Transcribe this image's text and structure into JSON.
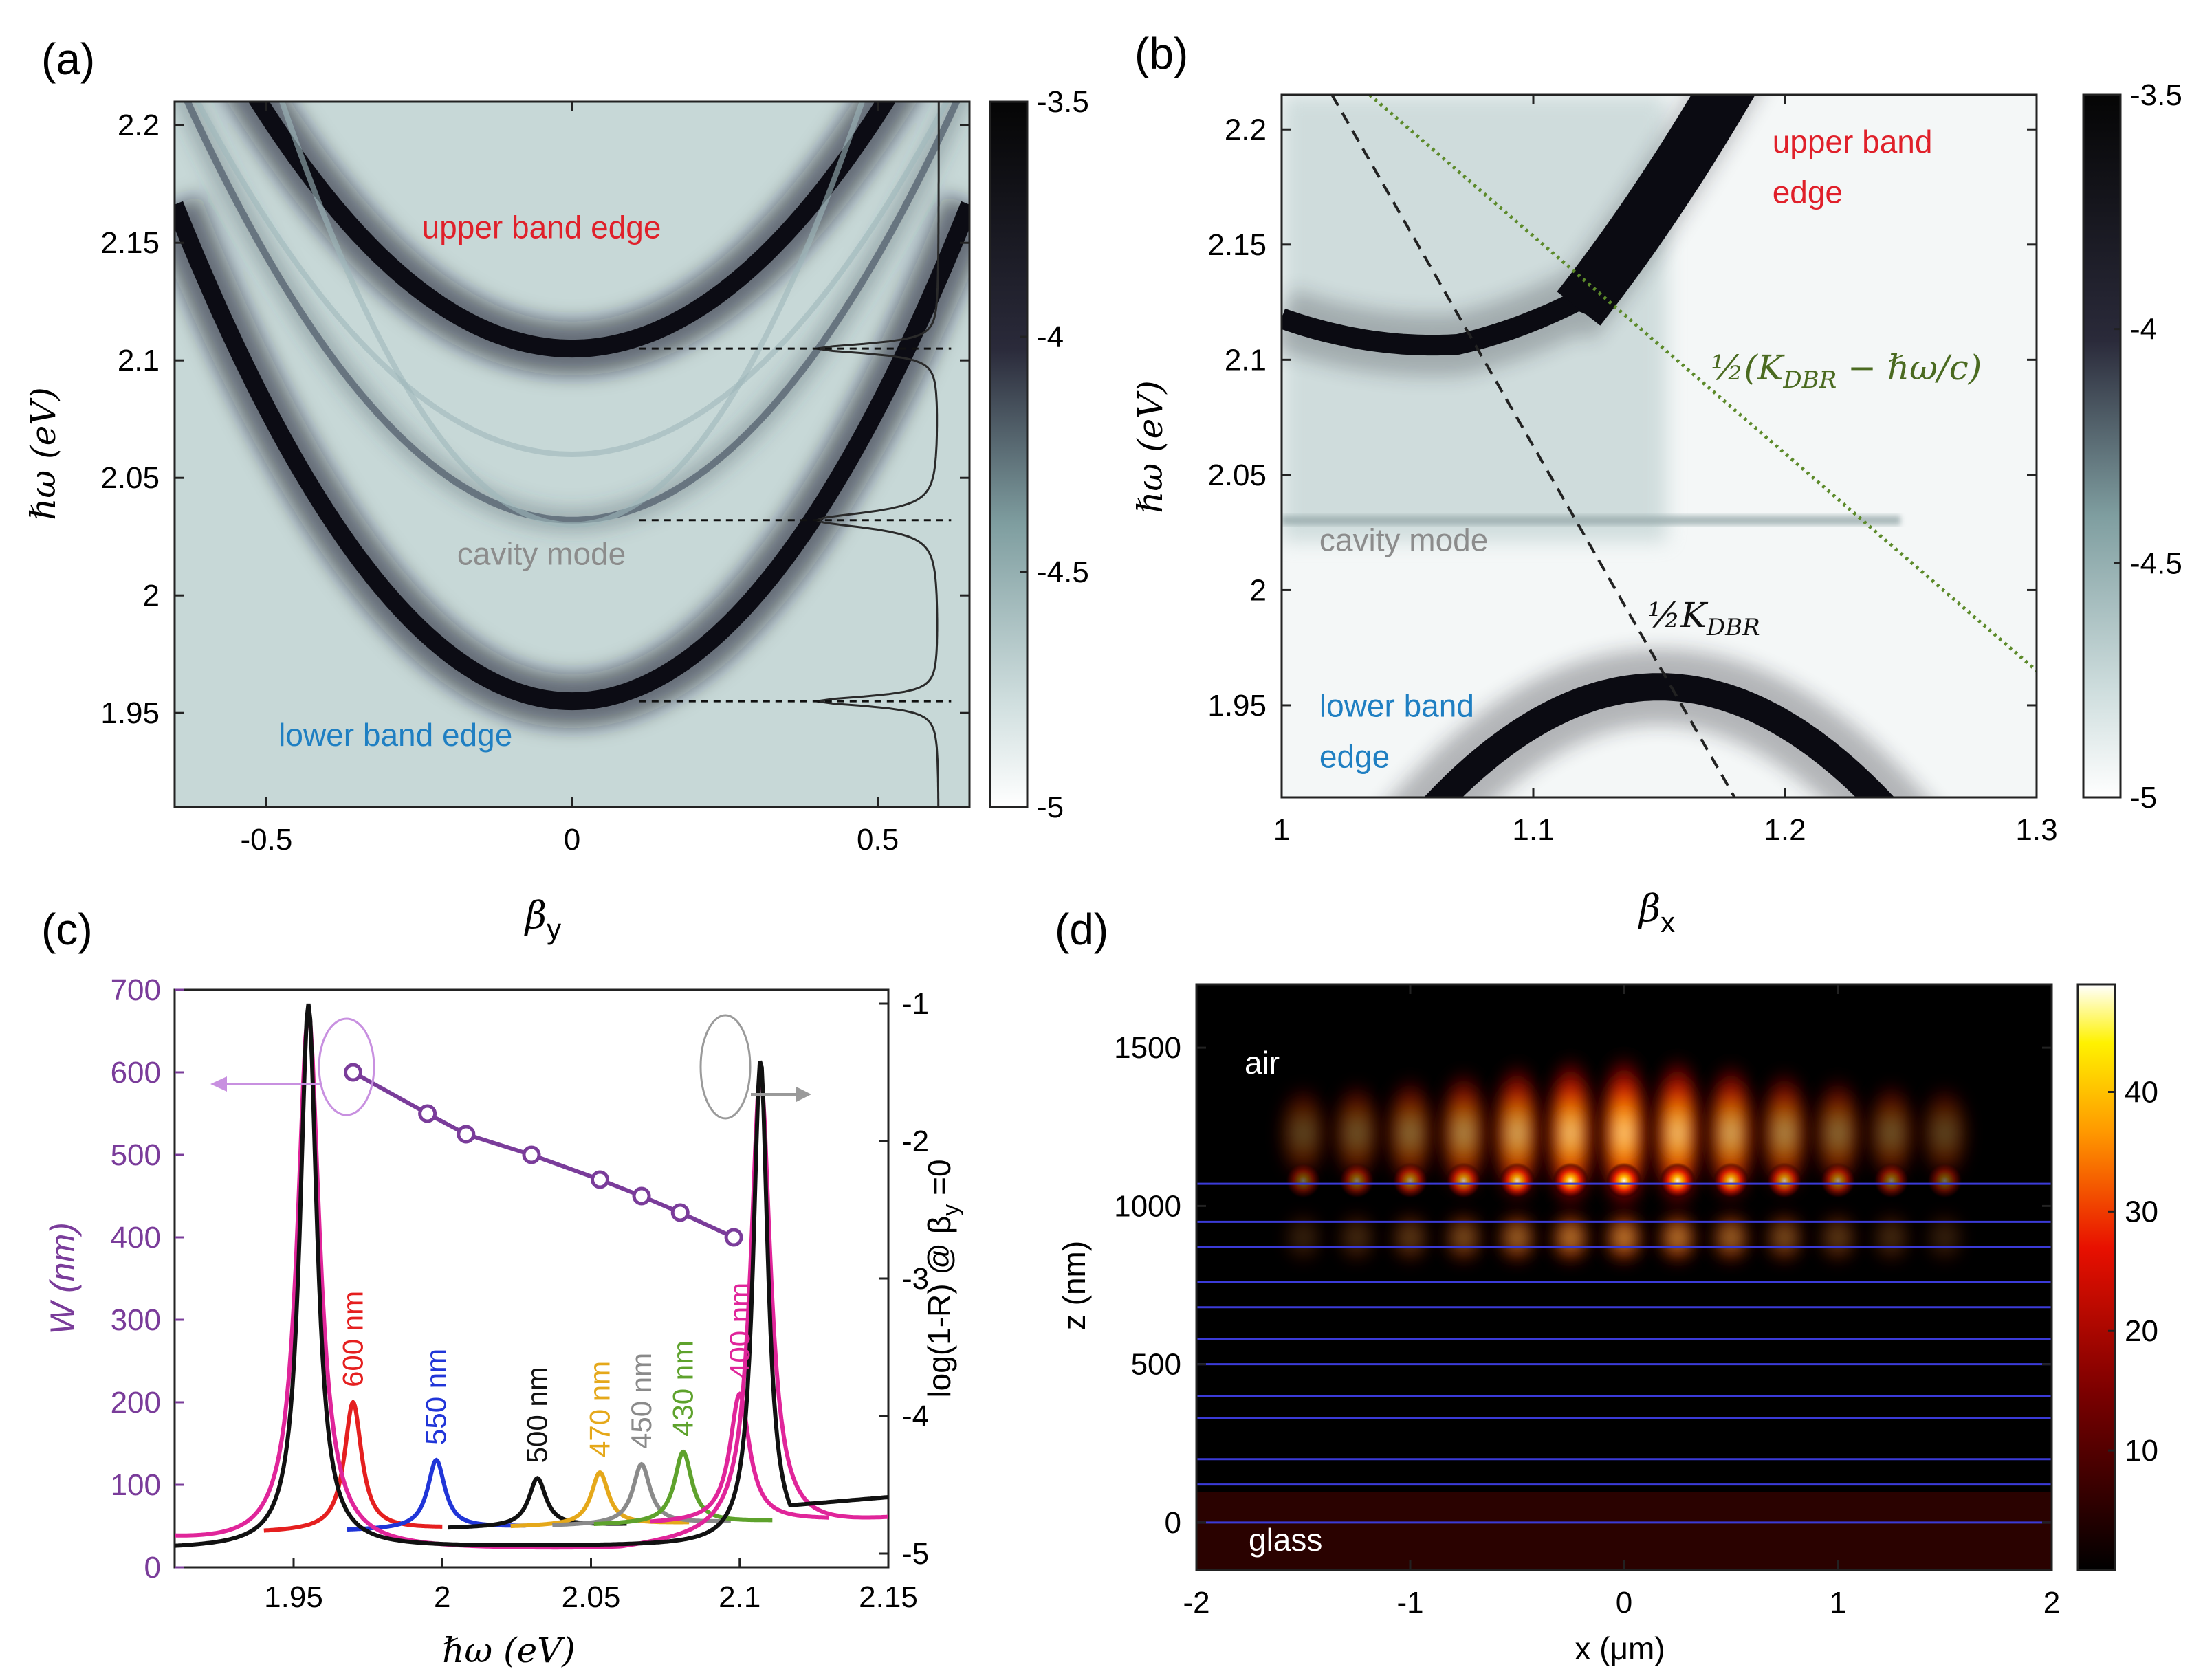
{
  "chart_data": [
    {
      "id": "a",
      "type": "heatmap",
      "panel_label": "(a)",
      "xlabel": "β",
      "xlabel_sub": "y",
      "ylabel": "ℏω (eV)",
      "xlim": [
        -0.65,
        0.65
      ],
      "ylim": [
        1.91,
        2.21
      ],
      "xticks": [
        -0.5,
        0,
        0.5
      ],
      "xtick_labels": [
        "-0.5",
        "0",
        "0.5"
      ],
      "yticks": [
        1.95,
        2.0,
        2.05,
        2.1,
        2.15,
        2.2
      ],
      "ytick_labels": [
        "1.95",
        "2",
        "2.05",
        "2.1",
        "2.15",
        "2.2"
      ],
      "colorbar": {
        "ticks": [
          -3.5,
          -4,
          -4.5,
          -5
        ],
        "tick_labels": [
          "-3.5",
          "-4",
          "-4.5",
          "-5"
        ]
      },
      "bands": [
        {
          "name": "upper band edge",
          "edge_energy": 2.105,
          "curvature": 0.4
        },
        {
          "name": "cavity mode",
          "edge_energy": 2.032,
          "curvature": 0.45
        },
        {
          "name": "lower band edge",
          "edge_energy": 1.955,
          "curvature": 0.5
        }
      ],
      "annotations": [
        {
          "text": "upper band edge",
          "color": "#e0202a",
          "x": -0.05,
          "y": 2.152
        },
        {
          "text": "cavity mode",
          "color": "#8c8c8c",
          "x": -0.05,
          "y": 2.013
        },
        {
          "text": "lower band edge",
          "color": "#1f7fc2",
          "x": -0.48,
          "y": 1.936
        }
      ]
    },
    {
      "id": "b",
      "type": "heatmap",
      "panel_label": "(b)",
      "xlabel": "β",
      "xlabel_sub": "x",
      "ylabel": "ℏω (eV)",
      "xlim": [
        1.0,
        1.3
      ],
      "ylim": [
        1.91,
        2.215
      ],
      "xticks": [
        1.0,
        1.1,
        1.2,
        1.3
      ],
      "xtick_labels": [
        "1",
        "1.1",
        "1.2",
        "1.3"
      ],
      "yticks": [
        1.95,
        2.0,
        2.05,
        2.1,
        2.15,
        2.2
      ],
      "ytick_labels": [
        "1.95",
        "2",
        "2.05",
        "2.1",
        "2.15",
        "2.2"
      ],
      "colorbar": {
        "ticks": [
          -3.5,
          -4,
          -4.5,
          -5
        ],
        "tick_labels": [
          "-3.5",
          "-4",
          "-4.5",
          "-5"
        ]
      },
      "lines": [
        {
          "name": "half K_DBR",
          "style": "dashed",
          "points": [
            [
              1.02,
              2.215
            ],
            [
              1.18,
              1.91
            ]
          ]
        },
        {
          "name": "half (K_DBR - hw/c)",
          "style": "dotted",
          "points": [
            [
              1.035,
              2.215
            ],
            [
              1.3,
              1.965
            ]
          ]
        }
      ],
      "annotations": [
        {
          "text": "upper band",
          "color": "#e0202a",
          "x": 1.195,
          "y": 2.19
        },
        {
          "text": "edge",
          "color": "#e0202a",
          "x": 1.195,
          "y": 2.168
        },
        {
          "text": "cavity mode",
          "color": "#8c8c8c",
          "x": 1.015,
          "y": 2.017
        },
        {
          "text": "lower band",
          "color": "#1f7fc2",
          "x": 1.015,
          "y": 1.945
        },
        {
          "text": "edge",
          "color": "#1f7fc2",
          "x": 1.015,
          "y": 1.923
        }
      ],
      "formula_labels": [
        "½(K",
        "DBR",
        " − ℏω/c)",
        "½K",
        "DBR"
      ]
    },
    {
      "id": "c",
      "type": "line",
      "panel_label": "(c)",
      "xlabel": "ℏω (eV)",
      "ylabel_left": "W (nm)",
      "ylabel_right": "log(1-R) @ β",
      "ylabel_right_sub": "y",
      "ylabel_right_tail": " =0",
      "xlim": [
        1.91,
        2.15
      ],
      "ylim_left": [
        0,
        700
      ],
      "ylim_right": [
        -5.1,
        -0.9
      ],
      "xticks": [
        1.95,
        2.0,
        2.05,
        2.1,
        2.15
      ],
      "xtick_labels": [
        "1.95",
        "2",
        "2.05",
        "2.1",
        "2.15"
      ],
      "yticks_left": [
        0,
        100,
        200,
        300,
        400,
        500,
        600,
        700
      ],
      "ytick_labels_left": [
        "0",
        "100",
        "200",
        "300",
        "400",
        "500",
        "600",
        "700"
      ],
      "yticks_right": [
        -1,
        -2,
        -3,
        -4,
        -5
      ],
      "ytick_labels_right": [
        "-1",
        "-2",
        "-3",
        "-4",
        "-5"
      ],
      "w_series": {
        "name": "W vs cavity energy",
        "color": "#7a3c9a",
        "x": [
          1.97,
          1.995,
          2.008,
          2.03,
          2.053,
          2.067,
          2.08,
          2.098
        ],
        "y": [
          600,
          550,
          525,
          500,
          470,
          450,
          430,
          400
        ]
      },
      "peak_spectra": [
        {
          "label": "600 nm",
          "color": "#e51f1f",
          "peak_x": 1.97,
          "peak_y": 200
        },
        {
          "label": "550 nm",
          "color": "#2035d8",
          "peak_x": 1.998,
          "peak_y": 130
        },
        {
          "label": "500 nm",
          "color": "#111111",
          "peak_x": 2.032,
          "peak_y": 108
        },
        {
          "label": "470 nm",
          "color": "#e5a81a",
          "peak_x": 2.053,
          "peak_y": 115
        },
        {
          "label": "450 nm",
          "color": "#8a8a8a",
          "peak_x": 2.067,
          "peak_y": 125
        },
        {
          "label": "430 nm",
          "color": "#5ea22c",
          "peak_x": 2.081,
          "peak_y": 140
        },
        {
          "label": "400 nm",
          "color": "#e0259a",
          "peak_x": 2.1,
          "peak_y": 210
        }
      ],
      "band_edge_peaks": [
        1.955,
        2.107
      ]
    },
    {
      "id": "d",
      "type": "heatmap",
      "panel_label": "(d)",
      "xlabel": "x (μm)",
      "ylabel": "z (nm)",
      "xlim": [
        -2,
        2
      ],
      "ylim": [
        -150,
        1700
      ],
      "xticks": [
        -2,
        -1,
        0,
        1,
        2
      ],
      "xtick_labels": [
        "-2",
        "-1",
        "0",
        "1",
        "2"
      ],
      "yticks": [
        0,
        500,
        1000,
        1500
      ],
      "ytick_labels": [
        "0",
        "500",
        "1000",
        "1500"
      ],
      "colorbar": {
        "range": [
          0,
          49
        ],
        "ticks": [
          10,
          20,
          30,
          40
        ],
        "tick_labels": [
          "10",
          "20",
          "30",
          "40"
        ]
      },
      "layer_boundaries_nm": [
        0,
        120,
        200,
        330,
        400,
        500,
        580,
        680,
        760,
        870,
        950,
        1070
      ],
      "hotspot_x_um": [
        -1.5,
        -1.25,
        -1.0,
        -0.75,
        -0.5,
        -0.25,
        0.0,
        0.25,
        0.5,
        0.75,
        1.0,
        1.25,
        1.5
      ],
      "region_labels": [
        "air",
        "glass"
      ]
    }
  ]
}
